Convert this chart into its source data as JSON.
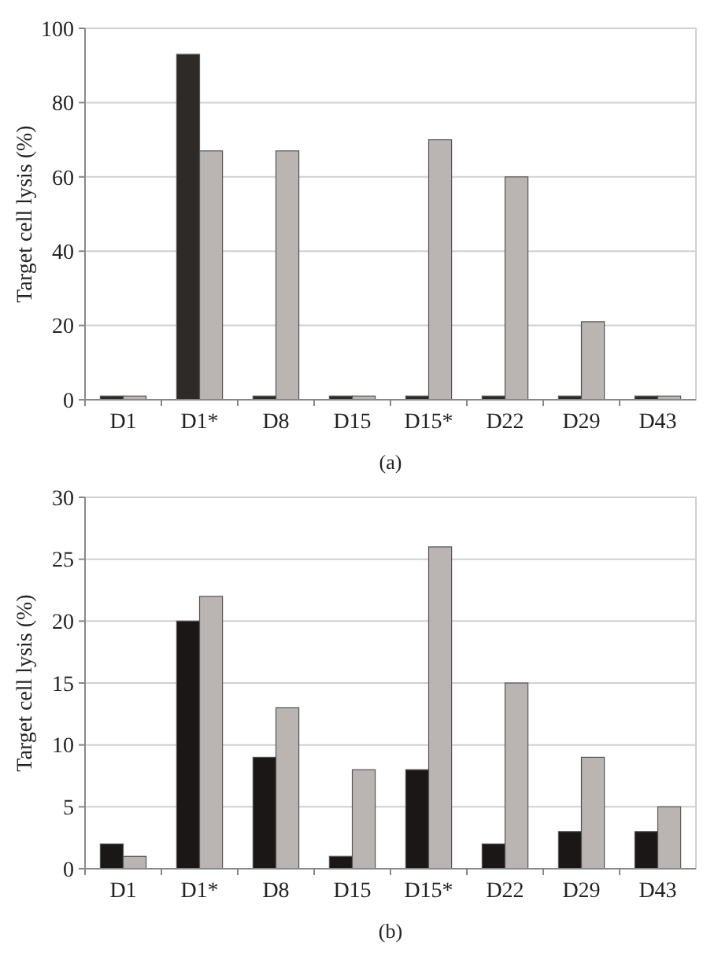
{
  "chart_data": [
    {
      "type": "bar",
      "ylabel": "Target cell lysis (%)",
      "categories": [
        "D1",
        "D1*",
        "D8",
        "D15",
        "D15*",
        "D22",
        "D29",
        "D43"
      ],
      "series": [
        {
          "color": "#2e2a28",
          "values": [
            1,
            93,
            1,
            1,
            1,
            1,
            1,
            1
          ]
        },
        {
          "color": "#bab4b2",
          "values": [
            1,
            67,
            67,
            1,
            70,
            60,
            21,
            1
          ]
        }
      ],
      "ylim": [
        0,
        100
      ],
      "yticks": [
        0,
        20,
        40,
        60,
        80,
        100
      ],
      "grid": "y",
      "annotations": [
        "(a)"
      ]
    },
    {
      "type": "bar",
      "ylabel": "Target cell lysis (%)",
      "categories": [
        "D1",
        "D1*",
        "D8",
        "D15",
        "D15*",
        "D22",
        "D29",
        "D43"
      ],
      "series": [
        {
          "color": "#1a1716",
          "values": [
            2,
            20,
            9,
            1,
            8,
            2,
            3,
            3
          ]
        },
        {
          "color": "#bab4b2",
          "values": [
            1,
            22,
            13,
            8,
            26,
            15,
            9,
            5
          ]
        }
      ],
      "ylim": [
        0,
        30
      ],
      "yticks": [
        0,
        5,
        10,
        15,
        20,
        25,
        30
      ],
      "grid": "y",
      "annotations": [
        "(b)"
      ]
    }
  ]
}
